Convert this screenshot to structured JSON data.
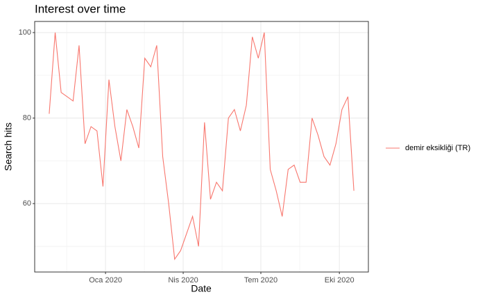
{
  "chart_data": {
    "type": "line",
    "title": "Interest over time",
    "x_label": "Date",
    "y_label": "Search hits",
    "x": [
      "2019-10-27",
      "2019-11-03",
      "2019-11-10",
      "2019-11-17",
      "2019-11-24",
      "2019-12-01",
      "2019-12-08",
      "2019-12-15",
      "2019-12-22",
      "2019-12-29",
      "2020-01-05",
      "2020-01-12",
      "2020-01-19",
      "2020-01-26",
      "2020-02-02",
      "2020-02-09",
      "2020-02-16",
      "2020-02-23",
      "2020-03-01",
      "2020-03-08",
      "2020-03-15",
      "2020-03-22",
      "2020-03-29",
      "2020-04-05",
      "2020-04-12",
      "2020-04-19",
      "2020-04-26",
      "2020-05-03",
      "2020-05-10",
      "2020-05-17",
      "2020-05-24",
      "2020-05-31",
      "2020-06-07",
      "2020-06-14",
      "2020-06-21",
      "2020-06-28",
      "2020-07-05",
      "2020-07-12",
      "2020-07-19",
      "2020-07-26",
      "2020-08-02",
      "2020-08-09",
      "2020-08-16",
      "2020-08-23",
      "2020-08-30",
      "2020-09-06",
      "2020-09-13",
      "2020-09-20",
      "2020-09-27",
      "2020-10-04",
      "2020-10-11",
      "2020-10-18"
    ],
    "series": [
      {
        "name": "demir eksikliği (TR)",
        "color": "#F8766D",
        "values": [
          81,
          100,
          86,
          85,
          84,
          97,
          74,
          78,
          77,
          64,
          89,
          78,
          70,
          82,
          78,
          73,
          94,
          92,
          97,
          71,
          60,
          47,
          49,
          53,
          57,
          50,
          79,
          61,
          65,
          63,
          80,
          82,
          77,
          83,
          99,
          94,
          100,
          68,
          63,
          57,
          68,
          69,
          65,
          65,
          80,
          76,
          71,
          69,
          74,
          82,
          85,
          63
        ]
      }
    ],
    "xlim": [
      "2019-10-10",
      "2020-11-04"
    ],
    "xticks": [
      {
        "value": "2020-01-01",
        "label": "Oca 2020"
      },
      {
        "value": "2020-04-01",
        "label": "Nis 2020"
      },
      {
        "value": "2020-07-01",
        "label": "Tem 2020"
      },
      {
        "value": "2020-10-01",
        "label": "Eki 2020"
      }
    ],
    "ylim": [
      44,
      102.6
    ],
    "yticks": [
      60,
      80,
      100
    ],
    "grid": true,
    "legend": "right"
  }
}
